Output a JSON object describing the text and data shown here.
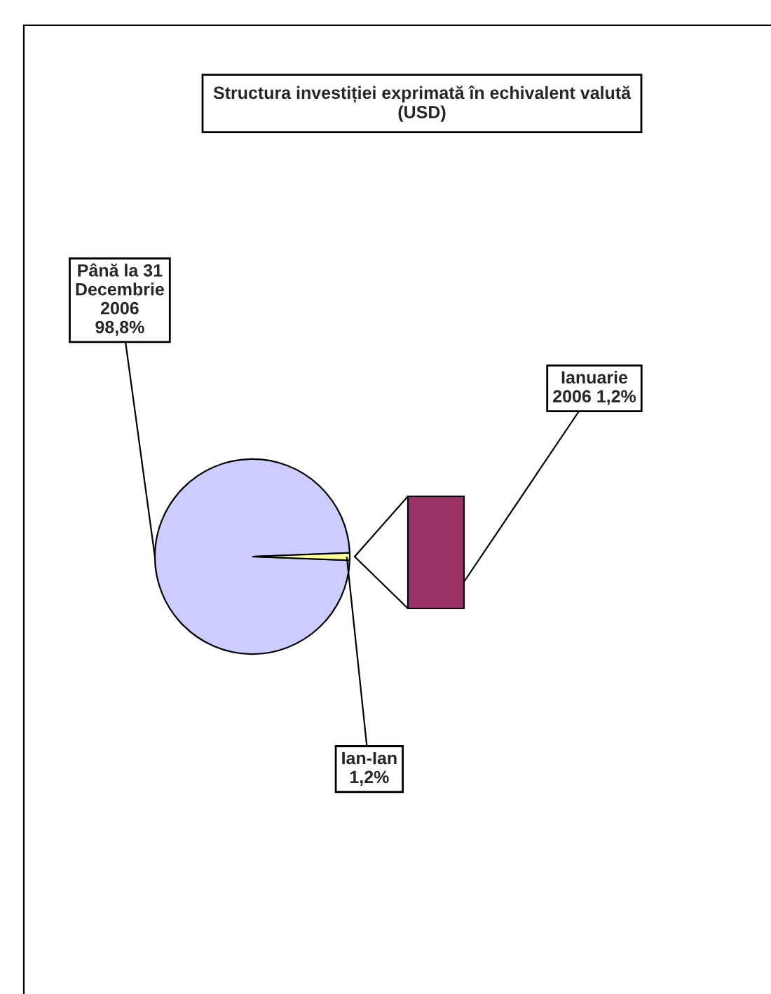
{
  "chart_data": {
    "type": "pie",
    "title": "Structura investiției exprimată în echivalent valută (USD)",
    "categories": [
      "Până la 31 Decembrie 2006",
      "Ian-Ian"
    ],
    "values": [
      98.8,
      1.2
    ],
    "colors": [
      "#ccccff",
      "#ffff99"
    ],
    "value_labels": [
      "98,8%",
      "1,2%"
    ],
    "annotations": [
      "Ianuarie 2006 1,2%"
    ]
  }
}
